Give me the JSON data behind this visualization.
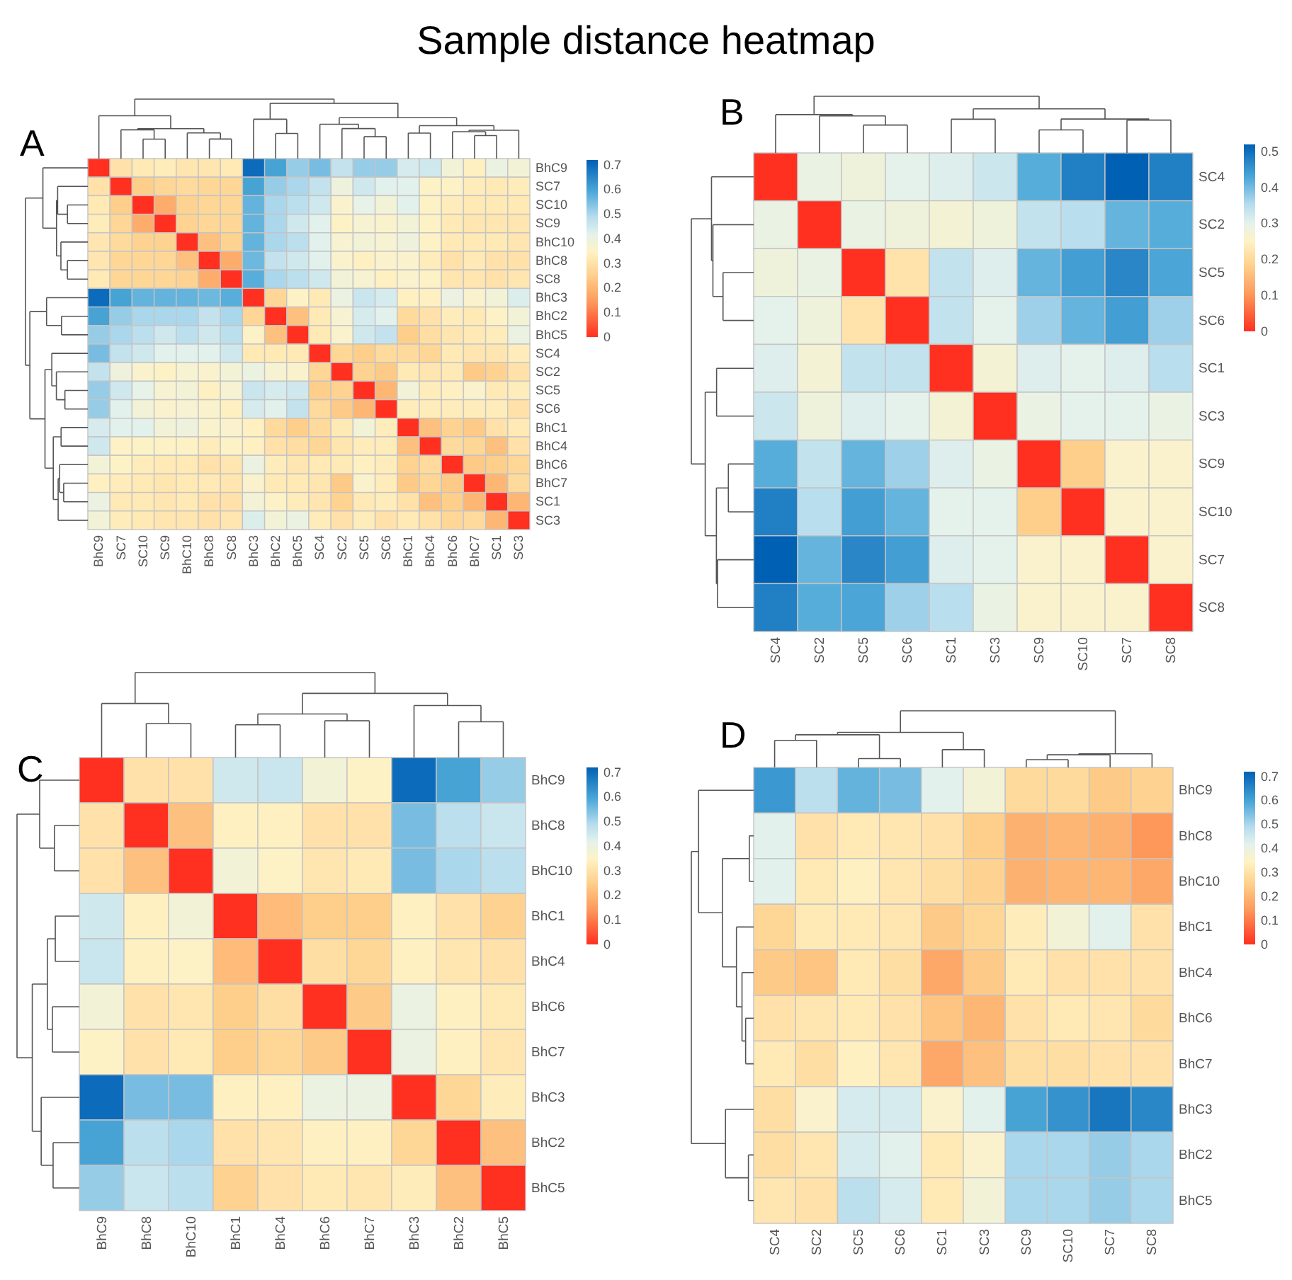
{
  "chart_data": [
    {
      "type": "heatmap",
      "title": "A",
      "annotations": [
        "Sample distance heatmap"
      ],
      "categories": [
        "BhC9",
        "SC7",
        "SC10",
        "SC9",
        "BhC10",
        "BhC8",
        "SC8",
        "BhC3",
        "BhC2",
        "BhC5",
        "SC4",
        "SC2",
        "SC5",
        "SC6",
        "BhC1",
        "BhC4",
        "BhC6",
        "BhC7",
        "SC1",
        "SC3"
      ],
      "y_categories": [
        "BhC9",
        "SC7",
        "SC10",
        "SC9",
        "BhC10",
        "BhC8",
        "SC8",
        "BhC3",
        "BhC2",
        "BhC5",
        "SC4",
        "SC2",
        "SC5",
        "SC6",
        "BhC1",
        "BhC4",
        "BhC6",
        "BhC7",
        "SC1",
        "SC3"
      ],
      "cells": [
        [
          0,
          0.3,
          0.32,
          0.33,
          0.31,
          0.31,
          0.32,
          0.7,
          0.6,
          0.52,
          0.55,
          0.47,
          0.52,
          0.52,
          0.44,
          0.45,
          0.38,
          0.34,
          0.4,
          0.38
        ],
        [
          0.3,
          0,
          0.25,
          0.27,
          0.28,
          0.27,
          0.27,
          0.6,
          0.52,
          0.5,
          0.47,
          0.39,
          0.45,
          0.42,
          0.42,
          0.35,
          0.35,
          0.33,
          0.32,
          0.33
        ],
        [
          0.32,
          0.25,
          0,
          0.18,
          0.26,
          0.27,
          0.27,
          0.57,
          0.5,
          0.48,
          0.45,
          0.36,
          0.41,
          0.38,
          0.42,
          0.35,
          0.33,
          0.32,
          0.32,
          0.32
        ],
        [
          0.33,
          0.27,
          0.18,
          0,
          0.26,
          0.27,
          0.27,
          0.57,
          0.5,
          0.45,
          0.42,
          0.35,
          0.37,
          0.36,
          0.38,
          0.35,
          0.32,
          0.31,
          0.31,
          0.31
        ],
        [
          0.31,
          0.28,
          0.26,
          0.26,
          0,
          0.22,
          0.26,
          0.57,
          0.5,
          0.48,
          0.42,
          0.37,
          0.38,
          0.37,
          0.39,
          0.35,
          0.32,
          0.32,
          0.32,
          0.31
        ],
        [
          0.31,
          0.27,
          0.27,
          0.27,
          0.22,
          0,
          0.18,
          0.56,
          0.47,
          0.45,
          0.42,
          0.36,
          0.34,
          0.36,
          0.36,
          0.33,
          0.3,
          0.32,
          0.3,
          0.3
        ],
        [
          0.32,
          0.27,
          0.27,
          0.27,
          0.26,
          0.18,
          0,
          0.58,
          0.5,
          0.48,
          0.45,
          0.38,
          0.37,
          0.34,
          0.36,
          0.35,
          0.31,
          0.31,
          0.3,
          0.31
        ],
        [
          0.7,
          0.6,
          0.57,
          0.57,
          0.57,
          0.56,
          0.58,
          0,
          0.27,
          0.35,
          0.32,
          0.4,
          0.46,
          0.44,
          0.34,
          0.34,
          0.4,
          0.36,
          0.38,
          0.43
        ],
        [
          0.6,
          0.52,
          0.5,
          0.5,
          0.5,
          0.47,
          0.5,
          0.27,
          0,
          0.22,
          0.32,
          0.37,
          0.44,
          0.42,
          0.28,
          0.3,
          0.33,
          0.32,
          0.35,
          0.38
        ],
        [
          0.52,
          0.5,
          0.48,
          0.45,
          0.48,
          0.45,
          0.48,
          0.35,
          0.22,
          0,
          0.32,
          0.36,
          0.45,
          0.47,
          0.25,
          0.29,
          0.31,
          0.32,
          0.33,
          0.4
        ],
        [
          0.55,
          0.47,
          0.45,
          0.42,
          0.42,
          0.42,
          0.45,
          0.32,
          0.32,
          0.32,
          0,
          0.27,
          0.25,
          0.28,
          0.28,
          0.27,
          0.32,
          0.31,
          0.31,
          0.33
        ],
        [
          0.47,
          0.39,
          0.36,
          0.35,
          0.37,
          0.36,
          0.38,
          0.4,
          0.37,
          0.36,
          0.27,
          0,
          0.26,
          0.24,
          0.32,
          0.31,
          0.32,
          0.24,
          0.26,
          0.3
        ],
        [
          0.52,
          0.45,
          0.41,
          0.37,
          0.38,
          0.34,
          0.37,
          0.46,
          0.44,
          0.45,
          0.25,
          0.26,
          0,
          0.2,
          0.38,
          0.33,
          0.34,
          0.36,
          0.32,
          0.33
        ],
        [
          0.52,
          0.42,
          0.38,
          0.36,
          0.37,
          0.36,
          0.34,
          0.44,
          0.42,
          0.47,
          0.28,
          0.24,
          0.2,
          0,
          0.33,
          0.33,
          0.33,
          0.33,
          0.33,
          0.3
        ],
        [
          0.44,
          0.42,
          0.42,
          0.38,
          0.39,
          0.36,
          0.36,
          0.34,
          0.28,
          0.25,
          0.28,
          0.32,
          0.38,
          0.33,
          0,
          0.22,
          0.26,
          0.24,
          0.3,
          0.32
        ],
        [
          0.45,
          0.35,
          0.35,
          0.35,
          0.35,
          0.33,
          0.35,
          0.34,
          0.3,
          0.29,
          0.27,
          0.31,
          0.33,
          0.33,
          0.22,
          0,
          0.28,
          0.27,
          0.22,
          0.3
        ],
        [
          0.38,
          0.35,
          0.33,
          0.32,
          0.32,
          0.3,
          0.31,
          0.4,
          0.33,
          0.31,
          0.32,
          0.32,
          0.34,
          0.33,
          0.26,
          0.28,
          0,
          0.24,
          0.25,
          0.27
        ],
        [
          0.34,
          0.33,
          0.32,
          0.31,
          0.32,
          0.32,
          0.31,
          0.36,
          0.32,
          0.32,
          0.31,
          0.24,
          0.36,
          0.33,
          0.24,
          0.27,
          0.24,
          0,
          0.2,
          0.28
        ],
        [
          0.4,
          0.32,
          0.32,
          0.31,
          0.32,
          0.3,
          0.3,
          0.38,
          0.35,
          0.33,
          0.31,
          0.26,
          0.32,
          0.33,
          0.3,
          0.22,
          0.25,
          0.2,
          0,
          0.2
        ],
        [
          0.38,
          0.33,
          0.32,
          0.31,
          0.31,
          0.3,
          0.31,
          0.43,
          0.38,
          0.4,
          0.33,
          0.3,
          0.33,
          0.3,
          0.32,
          0.3,
          0.27,
          0.28,
          0.2,
          0
        ]
      ],
      "clim": [
        0,
        0.72
      ],
      "cticks": [
        0,
        0.1,
        0.2,
        0.3,
        0.4,
        0.5,
        0.6,
        0.7
      ]
    },
    {
      "type": "heatmap",
      "title": "B",
      "categories": [
        "SC4",
        "SC2",
        "SC5",
        "SC6",
        "SC1",
        "SC3",
        "SC9",
        "SC10",
        "SC7",
        "SC8"
      ],
      "y_categories": [
        "SC4",
        "SC2",
        "SC5",
        "SC6",
        "SC1",
        "SC3",
        "SC9",
        "SC10",
        "SC7",
        "SC8"
      ],
      "cells": [
        [
          0,
          0.29,
          0.28,
          0.3,
          0.31,
          0.33,
          0.42,
          0.48,
          0.52,
          0.48
        ],
        [
          0.29,
          0,
          0.29,
          0.28,
          0.27,
          0.28,
          0.34,
          0.35,
          0.41,
          0.42
        ],
        [
          0.28,
          0.29,
          0,
          0.22,
          0.34,
          0.31,
          0.41,
          0.44,
          0.47,
          0.43
        ],
        [
          0.3,
          0.28,
          0.22,
          0,
          0.34,
          0.3,
          0.37,
          0.41,
          0.44,
          0.37
        ],
        [
          0.31,
          0.27,
          0.34,
          0.34,
          0,
          0.27,
          0.31,
          0.3,
          0.31,
          0.35
        ],
        [
          0.33,
          0.28,
          0.31,
          0.3,
          0.27,
          0,
          0.29,
          0.3,
          0.3,
          0.29
        ],
        [
          0.42,
          0.34,
          0.41,
          0.37,
          0.31,
          0.29,
          0,
          0.18,
          0.26,
          0.26
        ],
        [
          0.48,
          0.35,
          0.44,
          0.41,
          0.3,
          0.3,
          0.18,
          0,
          0.26,
          0.26
        ],
        [
          0.52,
          0.41,
          0.47,
          0.44,
          0.31,
          0.3,
          0.26,
          0.26,
          0,
          0.26
        ],
        [
          0.48,
          0.42,
          0.43,
          0.37,
          0.35,
          0.29,
          0.26,
          0.26,
          0.26,
          0
        ]
      ],
      "clim": [
        0,
        0.52
      ],
      "cticks": [
        0,
        0.1,
        0.2,
        0.3,
        0.4,
        0.5
      ]
    },
    {
      "type": "heatmap",
      "title": "C",
      "categories": [
        "BhC9",
        "BhC8",
        "BhC10",
        "BhC1",
        "BhC4",
        "BhC6",
        "BhC7",
        "BhC3",
        "BhC2",
        "BhC5"
      ],
      "y_categories": [
        "BhC9",
        "BhC8",
        "BhC10",
        "BhC1",
        "BhC4",
        "BhC6",
        "BhC7",
        "BhC3",
        "BhC2",
        "BhC5"
      ],
      "cells": [
        [
          0,
          0.3,
          0.3,
          0.45,
          0.46,
          0.38,
          0.35,
          0.7,
          0.6,
          0.52
        ],
        [
          0.3,
          0,
          0.22,
          0.34,
          0.34,
          0.3,
          0.3,
          0.55,
          0.48,
          0.46
        ],
        [
          0.3,
          0.22,
          0,
          0.38,
          0.35,
          0.31,
          0.32,
          0.55,
          0.5,
          0.48
        ],
        [
          0.45,
          0.34,
          0.38,
          0,
          0.21,
          0.25,
          0.25,
          0.34,
          0.3,
          0.26
        ],
        [
          0.46,
          0.34,
          0.35,
          0.21,
          0,
          0.29,
          0.27,
          0.34,
          0.31,
          0.3
        ],
        [
          0.38,
          0.3,
          0.31,
          0.25,
          0.29,
          0,
          0.24,
          0.4,
          0.34,
          0.32
        ],
        [
          0.35,
          0.3,
          0.32,
          0.25,
          0.27,
          0.24,
          0,
          0.4,
          0.34,
          0.31
        ],
        [
          0.7,
          0.55,
          0.55,
          0.34,
          0.34,
          0.4,
          0.4,
          0,
          0.27,
          0.33
        ],
        [
          0.6,
          0.48,
          0.5,
          0.3,
          0.31,
          0.34,
          0.34,
          0.27,
          0,
          0.22
        ],
        [
          0.52,
          0.46,
          0.48,
          0.26,
          0.3,
          0.32,
          0.31,
          0.33,
          0.22,
          0
        ]
      ],
      "clim": [
        0,
        0.72
      ],
      "cticks": [
        0,
        0.1,
        0.2,
        0.3,
        0.4,
        0.5,
        0.6,
        0.7
      ]
    },
    {
      "type": "heatmap",
      "title": "D",
      "categories": [
        "SC4",
        "SC2",
        "SC5",
        "SC6",
        "SC1",
        "SC3",
        "SC9",
        "SC10",
        "SC7",
        "SC8"
      ],
      "y_categories": [
        "BhC9",
        "BhC8",
        "BhC10",
        "BhC1",
        "BhC4",
        "BhC6",
        "BhC7",
        "BhC3",
        "BhC2",
        "BhC5"
      ],
      "cells": [
        [
          0.62,
          0.48,
          0.57,
          0.55,
          0.42,
          0.38,
          0.28,
          0.28,
          0.24,
          0.26
        ],
        [
          0.42,
          0.3,
          0.32,
          0.31,
          0.3,
          0.25,
          0.19,
          0.2,
          0.19,
          0.14
        ],
        [
          0.42,
          0.32,
          0.34,
          0.31,
          0.29,
          0.26,
          0.19,
          0.2,
          0.2,
          0.17
        ],
        [
          0.27,
          0.32,
          0.32,
          0.31,
          0.24,
          0.27,
          0.33,
          0.38,
          0.42,
          0.3
        ],
        [
          0.24,
          0.23,
          0.32,
          0.29,
          0.17,
          0.24,
          0.32,
          0.3,
          0.3,
          0.3
        ],
        [
          0.3,
          0.31,
          0.32,
          0.3,
          0.23,
          0.2,
          0.3,
          0.32,
          0.31,
          0.28
        ],
        [
          0.32,
          0.29,
          0.34,
          0.31,
          0.17,
          0.22,
          0.29,
          0.29,
          0.3,
          0.3
        ],
        [
          0.29,
          0.36,
          0.44,
          0.44,
          0.36,
          0.42,
          0.6,
          0.63,
          0.68,
          0.65
        ],
        [
          0.29,
          0.31,
          0.44,
          0.42,
          0.32,
          0.36,
          0.5,
          0.5,
          0.52,
          0.5
        ],
        [
          0.31,
          0.3,
          0.48,
          0.44,
          0.32,
          0.38,
          0.5,
          0.5,
          0.52,
          0.5
        ]
      ],
      "clim": [
        0,
        0.72
      ],
      "cticks": [
        0,
        0.1,
        0.2,
        0.3,
        0.4,
        0.5,
        0.6,
        0.7
      ]
    }
  ]
}
